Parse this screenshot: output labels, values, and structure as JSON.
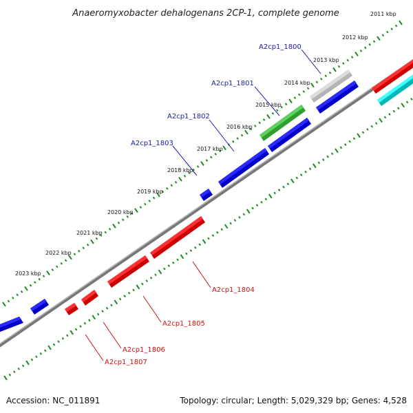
{
  "title": "Anaeromyxobacter dehalogenans 2CP-1, complete genome",
  "footer": {
    "accession": "Accession: NC_011891",
    "summary": "Topology: circular; Length: 5,029,329 bp; Genes: 4,528"
  },
  "ticks": [
    "2011 kbp",
    "2012 kbp",
    "2013 kbp",
    "2014 kbp",
    "2015 kbp",
    "2016 kbp",
    "2017 kbp",
    "2018 kbp",
    "2019 kbp",
    "2020 kbp",
    "2021 kbp",
    "2022 kbp",
    "2023 kbp"
  ],
  "genes": [
    {
      "label": "A2cp1_1800",
      "color": "#c8c8c8",
      "strand": "+"
    },
    {
      "label": "A2cp1_1801",
      "color": "#3ab83a",
      "strand": "+"
    },
    {
      "label": "A2cp1_1802",
      "color": "#0000e0",
      "strand": "+"
    },
    {
      "label": "A2cp1_1803",
      "color": "#0000e0",
      "strand": "+"
    },
    {
      "label": "A2cp1_1804",
      "color": "#ee0000",
      "strand": "-"
    },
    {
      "label": "A2cp1_1805",
      "color": "#ee0000",
      "strand": "-"
    },
    {
      "label": "A2cp1_1806",
      "color": "#ee0000",
      "strand": "-"
    },
    {
      "label": "A2cp1_1807",
      "color": "#ee0000",
      "strand": "-"
    }
  ],
  "legend_colors": {
    "forward": "#0000e0",
    "reverse": "#ee0000",
    "highlight": "#3ab83a",
    "pseudo": "#c8c8c8",
    "cyan": "#00e0e0",
    "backbone": "#888888",
    "tick": "#1a8a1a"
  }
}
